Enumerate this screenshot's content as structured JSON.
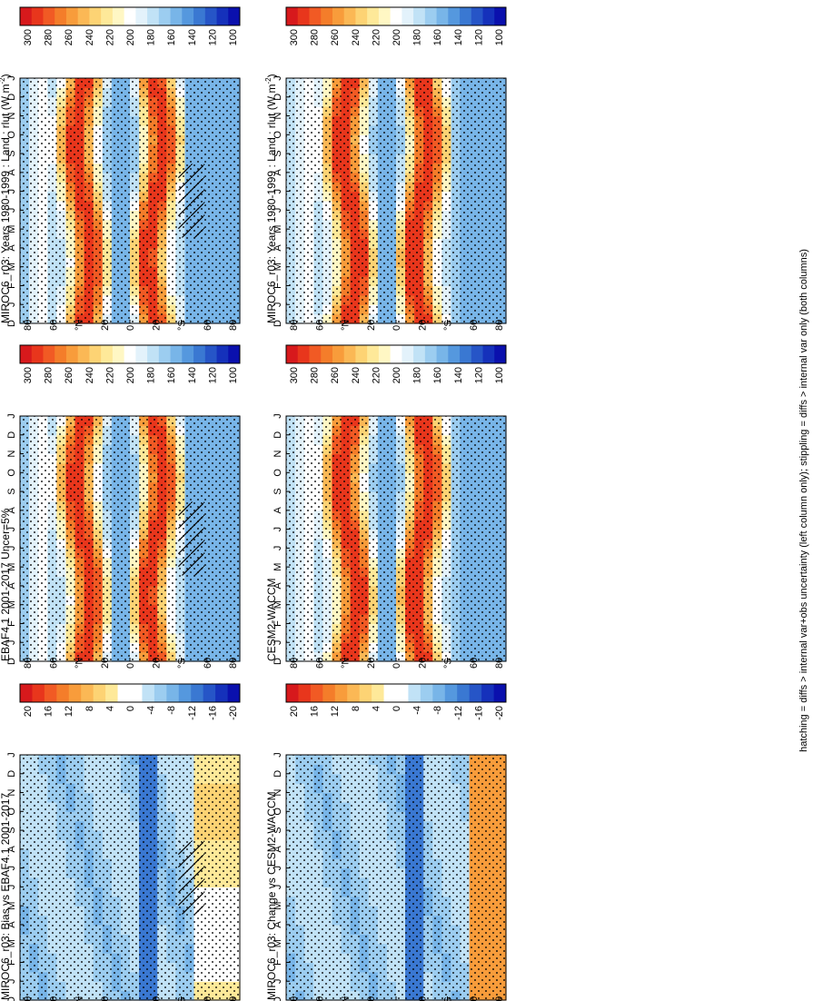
{
  "figure": {
    "footnote": "hatching = diffs > internal var+obs uncertainty (left column only); stippling = diffs > internal var only (both columns)",
    "months": [
      "D",
      "J",
      "F",
      "M",
      "A",
      "M",
      "J",
      "J",
      "A",
      "S",
      "O",
      "N",
      "D",
      "J"
    ],
    "lat_labels": [
      "80",
      "60",
      "°N",
      "20",
      "0",
      "20",
      "°S",
      "60",
      "80"
    ],
    "colors": {
      "abs_scale": [
        "#d7191c",
        "#e8361c",
        "#f15a24",
        "#f47d2a",
        "#f89c3b",
        "#fbb855",
        "#fdd374",
        "#fee999",
        "#fff7c4",
        "#ffffff",
        "#e3f2fb",
        "#c1e2f6",
        "#9ccdf0",
        "#78b5e8",
        "#5598de",
        "#3a78d2",
        "#2655c7",
        "#1531bb",
        "#0a10ad"
      ],
      "diff_scale": [
        "#d7191c",
        "#e8361c",
        "#f15a24",
        "#f47d2a",
        "#f89c3b",
        "#fbb855",
        "#fdd374",
        "#fee999",
        "#ffffff",
        "#ffffff",
        "#c1e2f6",
        "#9ccdf0",
        "#78b5e8",
        "#5598de",
        "#3a78d2",
        "#2655c7",
        "#1531bb",
        "#0a10ad"
      ]
    }
  },
  "chart_data": [
    {
      "type": "heatmap",
      "panel": "left-top",
      "title": "MIROC6_r03: Years 1980-1999 : Land : rlut (W m",
      "title_sup": "-2",
      "title_end": ")",
      "colorbar_ticks": [
        "300",
        "280",
        "260",
        "240",
        "220",
        "200",
        "180",
        "160",
        "140",
        "120",
        "100"
      ],
      "pattern": "abs"
    },
    {
      "type": "heatmap",
      "panel": "right-top",
      "title": "MIROC6_r03: Years 1980-1999 : Land : rlut (W m",
      "title_sup": "-2",
      "title_end": ")",
      "colorbar_ticks": [
        "300",
        "280",
        "260",
        "240",
        "220",
        "200",
        "180",
        "160",
        "140",
        "120",
        "100"
      ],
      "pattern": "abs"
    },
    {
      "type": "heatmap",
      "panel": "left-mid",
      "title": "EBAF4.1 2001-2017 Uncer=5%",
      "title_sup": "",
      "title_end": "",
      "colorbar_ticks": [
        "300",
        "280",
        "260",
        "240",
        "220",
        "200",
        "180",
        "160",
        "140",
        "120",
        "100"
      ],
      "pattern": "abs"
    },
    {
      "type": "heatmap",
      "panel": "right-mid",
      "title": "CESM2-WACCM",
      "title_sup": "",
      "title_end": "",
      "colorbar_ticks": [
        "300",
        "280",
        "260",
        "240",
        "220",
        "200",
        "180",
        "160",
        "140",
        "120",
        "100"
      ],
      "pattern": "abs"
    },
    {
      "type": "heatmap",
      "panel": "left-bot",
      "title": "MIROC6_r03: Bias vs EBAF4.1 2001-2017",
      "title_sup": "",
      "title_end": "",
      "colorbar_ticks": [
        "20",
        "16",
        "12",
        "8",
        "4",
        "0",
        "-4",
        "-8",
        "-12",
        "-16",
        "-20"
      ],
      "pattern": "diff"
    },
    {
      "type": "heatmap",
      "panel": "right-bot",
      "title": "MIROC6_r03: Change vs CESM2-WACCM",
      "title_sup": "",
      "title_end": "",
      "colorbar_ticks": [
        "20",
        "16",
        "12",
        "8",
        "4",
        "0",
        "-4",
        "-8",
        "-12",
        "-16",
        "-20"
      ],
      "pattern": "diff"
    }
  ]
}
